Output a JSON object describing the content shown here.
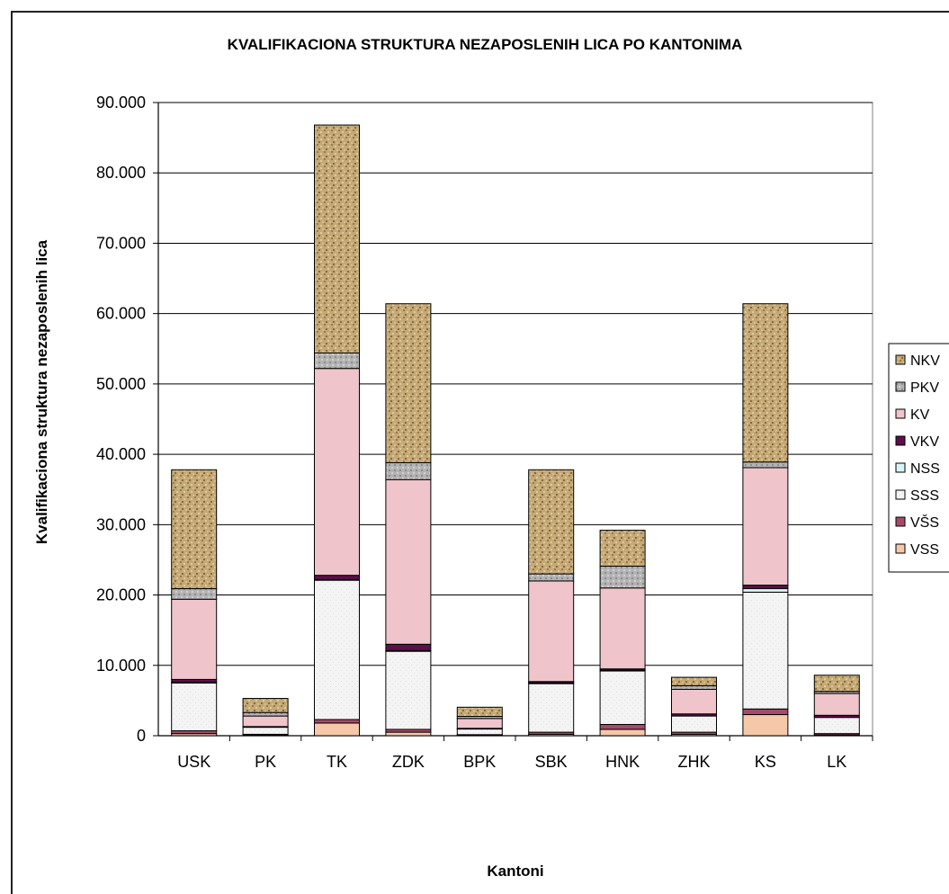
{
  "chart_data": {
    "type": "bar",
    "stacked": true,
    "title": "KVALIFIKACIONA STRUKTURA NEZAPOSLENIH LICA PO KANTONIMA",
    "xlabel": "Kantoni",
    "ylabel": "Kvalifikaciona struktura nezaposlenih lica",
    "ylim": [
      0,
      90000
    ],
    "yticks": [
      "0",
      "10.000",
      "20.000",
      "30.000",
      "40.000",
      "50.000",
      "60.000",
      "70.000",
      "80.000",
      "90.000"
    ],
    "grid": true,
    "legend_position": "right",
    "categories": [
      "USK",
      "PK",
      "TK",
      "ZDK",
      "BPK",
      "SBK",
      "HNK",
      "ZHK",
      "KS",
      "LK"
    ],
    "series": [
      {
        "name": "VSS",
        "color": "#f4c8a8",
        "values": [
          300,
          100,
          1800,
          500,
          100,
          200,
          900,
          200,
          3000,
          100
        ]
      },
      {
        "name": "VŠS",
        "color": "#a64a6a",
        "values": [
          400,
          100,
          500,
          400,
          50,
          300,
          700,
          300,
          800,
          200
        ]
      },
      {
        "name": "SSS",
        "color": "#f2f2f2",
        "values": [
          6800,
          1000,
          19800,
          11100,
          800,
          6900,
          7600,
          2300,
          16600,
          2300
        ]
      },
      {
        "name": "NSS",
        "color": "#d8f4f8",
        "values": [
          100,
          0,
          100,
          100,
          0,
          100,
          100,
          0,
          500,
          0
        ]
      },
      {
        "name": "VKV",
        "color": "#5c0f4a",
        "values": [
          400,
          100,
          600,
          900,
          100,
          200,
          200,
          300,
          500,
          300
        ]
      },
      {
        "name": "KV",
        "color": "#efc4cb",
        "values": [
          11400,
          1500,
          29400,
          23400,
          1400,
          14300,
          11500,
          3500,
          16700,
          3100
        ]
      },
      {
        "name": "PKV",
        "color": "#b3b3b3",
        "values": [
          1500,
          500,
          2200,
          2400,
          300,
          1000,
          3100,
          500,
          800,
          300
        ]
      },
      {
        "name": "NKV",
        "color": "#c4a978",
        "values": [
          16900,
          2000,
          32400,
          22600,
          1300,
          14800,
          5100,
          1200,
          22500,
          2300
        ]
      }
    ]
  }
}
